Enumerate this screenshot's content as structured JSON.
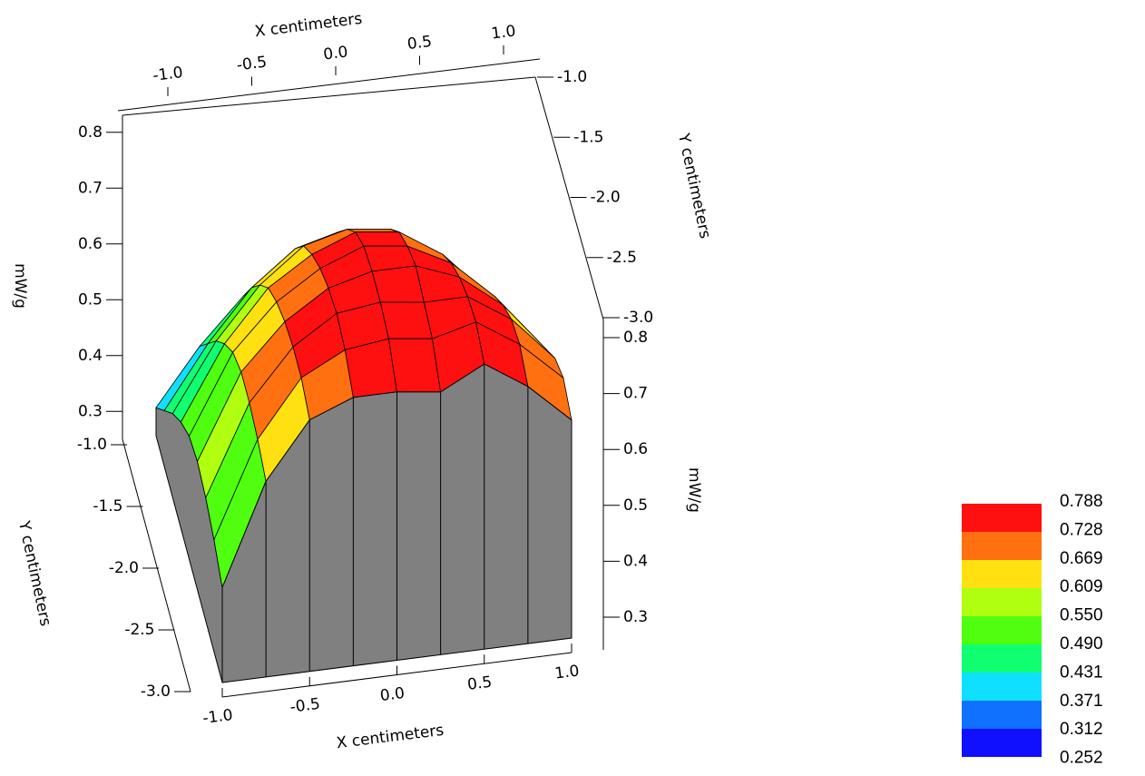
{
  "chart_data": {
    "type": "surface3d",
    "xlabel": "X centimeters",
    "ylabel": "Y centimeters",
    "zlabel": "mW/g",
    "x": [
      -1.0,
      -0.75,
      -0.5,
      -0.25,
      0.0,
      0.25,
      0.5,
      0.75,
      1.0
    ],
    "y": [
      -3.0,
      -2.75,
      -2.5,
      -2.25,
      -2.0,
      -1.75,
      -1.5,
      -1.25,
      -1.0
    ],
    "z": [
      [
        0.42,
        0.6,
        0.7,
        0.73,
        0.73,
        0.72,
        0.76,
        0.71,
        0.64
      ],
      [
        0.45,
        0.62,
        0.72,
        0.76,
        0.77,
        0.76,
        0.78,
        0.73,
        0.66
      ],
      [
        0.47,
        0.63,
        0.72,
        0.77,
        0.78,
        0.77,
        0.77,
        0.72,
        0.64
      ],
      [
        0.48,
        0.63,
        0.71,
        0.76,
        0.78,
        0.78,
        0.75,
        0.69,
        0.6
      ],
      [
        0.47,
        0.61,
        0.69,
        0.74,
        0.77,
        0.76,
        0.72,
        0.65,
        0.56
      ],
      [
        0.44,
        0.57,
        0.66,
        0.71,
        0.74,
        0.73,
        0.68,
        0.6,
        0.5
      ],
      [
        0.4,
        0.52,
        0.61,
        0.67,
        0.69,
        0.68,
        0.63,
        0.55,
        0.45
      ],
      [
        0.35,
        0.46,
        0.55,
        0.61,
        0.63,
        0.62,
        0.57,
        0.49,
        0.4
      ],
      [
        0.3,
        0.4,
        0.48,
        0.54,
        0.56,
        0.55,
        0.5,
        0.43,
        0.35
      ]
    ],
    "xlim": [
      -1.0,
      1.0
    ],
    "ylim": [
      -3.0,
      -1.0
    ],
    "zlim": [
      0.25,
      0.8
    ],
    "xticks": [
      {
        "value": -1.0,
        "label": "-1.0"
      },
      {
        "value": -0.5,
        "label": "-0.5"
      },
      {
        "value": 0.0,
        "label": "0.0"
      },
      {
        "value": 0.5,
        "label": "0.5"
      },
      {
        "value": 1.0,
        "label": "1.0"
      }
    ],
    "yticks": [
      {
        "value": -1.0,
        "label": "-1.0"
      },
      {
        "value": -1.5,
        "label": "-1.5"
      },
      {
        "value": -2.0,
        "label": "-2.0"
      },
      {
        "value": -2.5,
        "label": "-2.5"
      },
      {
        "value": -3.0,
        "label": "-3.0"
      }
    ],
    "zticks": [
      0.3,
      0.4,
      0.5,
      0.6,
      0.7,
      0.8
    ],
    "wall_color": "#808080",
    "levels": [
      {
        "value": 0.252,
        "label": "0.252"
      },
      {
        "value": 0.312,
        "label": "0.312"
      },
      {
        "value": 0.371,
        "label": "0.371"
      },
      {
        "value": 0.431,
        "label": "0.431"
      },
      {
        "value": 0.49,
        "label": "0.490"
      },
      {
        "value": 0.55,
        "label": "0.550"
      },
      {
        "value": 0.609,
        "label": "0.609"
      },
      {
        "value": 0.669,
        "label": "0.669"
      },
      {
        "value": 0.728,
        "label": "0.728"
      },
      {
        "value": 0.788,
        "label": "0.788"
      }
    ],
    "level_colors": [
      "#1010ff",
      "#1070ff",
      "#10e0ff",
      "#10ff70",
      "#50ff10",
      "#b0ff10",
      "#ffe010",
      "#ff7010",
      "#ff1010"
    ]
  }
}
